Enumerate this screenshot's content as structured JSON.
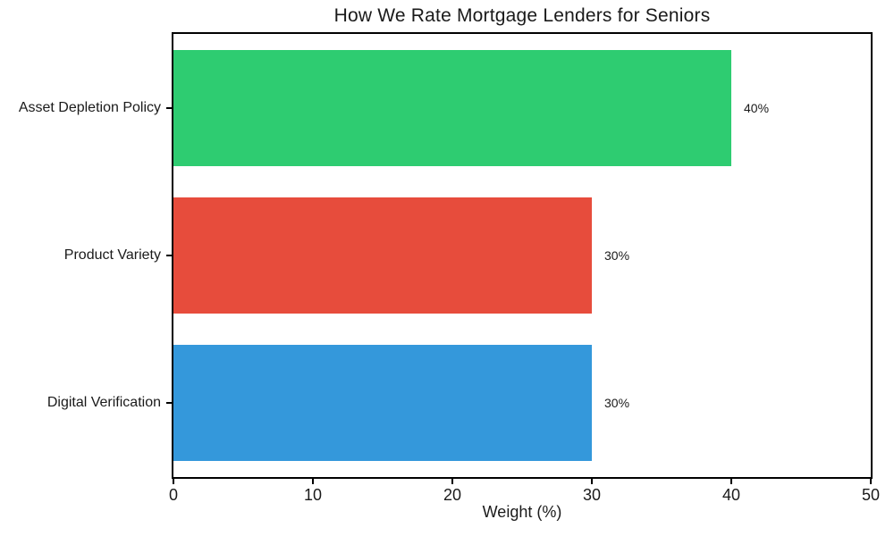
{
  "chart_data": {
    "type": "bar",
    "orientation": "horizontal",
    "title": "How We Rate Mortgage Lenders for Seniors",
    "xlabel": "Weight (%)",
    "ylabel": "",
    "categories": [
      "Asset Depletion Policy",
      "Product Variety",
      "Digital Verification"
    ],
    "values": [
      40,
      30,
      30
    ],
    "value_labels": [
      "40%",
      "30%",
      "30%"
    ],
    "bar_colors": [
      "#2ECC71",
      "#E74C3C",
      "#3498DB"
    ],
    "xlim": [
      0,
      50
    ],
    "xticks": [
      0,
      10,
      20,
      30,
      40,
      50
    ],
    "grid": false,
    "legend": false,
    "background_color": "#FFFFFF",
    "axis_color": "#000000",
    "text_color": "#1A1A1A"
  }
}
